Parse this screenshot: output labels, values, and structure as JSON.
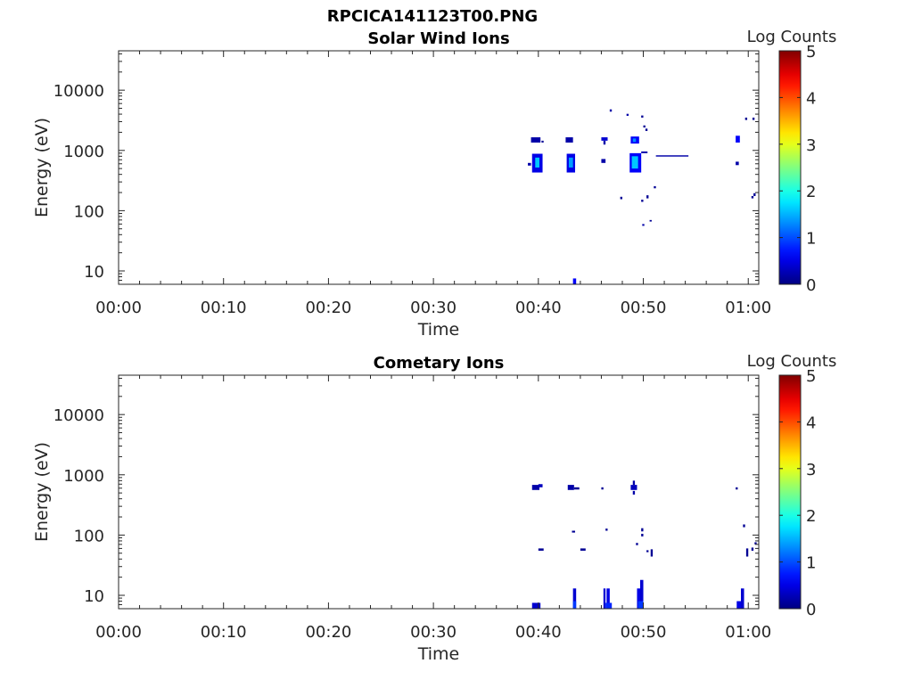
{
  "figure": {
    "title": "RPCICA141123T00.PNG"
  },
  "chart_data": [
    {
      "type": "heatmap",
      "title": "Solar Wind Ions",
      "xlabel": "Time",
      "ylabel": "Energy (eV)",
      "x_scale": "time",
      "y_scale": "log",
      "xlim": [
        "00:00",
        "01:01"
      ],
      "ylim": [
        6,
        45000
      ],
      "x_ticks": [
        "00:00",
        "00:10",
        "00:20",
        "00:30",
        "00:40",
        "00:50",
        "01:00"
      ],
      "y_ticks": [
        10,
        100,
        1000,
        10000
      ],
      "y_tick_labels": [
        "10",
        "100",
        "1000",
        "10000"
      ],
      "colorbar": {
        "label": "Log Counts",
        "min": 0,
        "max": 5,
        "ticks": [
          "0",
          "1",
          "2",
          "3",
          "4",
          "5"
        ]
      },
      "cells": [
        {
          "t": [
            39.3,
            40.2
          ],
          "e": [
            1350,
            1650
          ],
          "v": 0.2
        },
        {
          "t": [
            40.3,
            40.5
          ],
          "e": [
            1350,
            1450
          ],
          "v": 0.1
        },
        {
          "t": [
            39.4,
            40.4
          ],
          "e": [
            430,
            880
          ],
          "v": 0.5
        },
        {
          "t": [
            39.7,
            40.1
          ],
          "e": [
            520,
            760
          ],
          "v": 1.6
        },
        {
          "t": [
            39.0,
            39.3
          ],
          "e": [
            560,
            620
          ],
          "v": 0.2
        },
        {
          "t": [
            42.6,
            43.3
          ],
          "e": [
            1350,
            1650
          ],
          "v": 0.2
        },
        {
          "t": [
            42.7,
            43.5
          ],
          "e": [
            430,
            880
          ],
          "v": 0.5
        },
        {
          "t": [
            42.9,
            43.3
          ],
          "e": [
            520,
            760
          ],
          "v": 1.4
        },
        {
          "t": [
            43.3,
            43.6
          ],
          "e": [
            6,
            7.5
          ],
          "v": 0.6
        },
        {
          "t": [
            46.0,
            46.6
          ],
          "e": [
            1450,
            1650
          ],
          "v": 0.4
        },
        {
          "t": [
            46.2,
            46.4
          ],
          "e": [
            1250,
            1450
          ],
          "v": 0.2
        },
        {
          "t": [
            46.0,
            46.4
          ],
          "e": [
            620,
            720
          ],
          "v": 0.2
        },
        {
          "t": [
            48.8,
            49.6
          ],
          "e": [
            1300,
            1700
          ],
          "v": 0.6
        },
        {
          "t": [
            49.0,
            49.3
          ],
          "e": [
            1380,
            1580
          ],
          "v": 1.3
        },
        {
          "t": [
            48.7,
            49.8
          ],
          "e": [
            430,
            900
          ],
          "v": 0.6
        },
        {
          "t": [
            48.9,
            49.5
          ],
          "e": [
            500,
            800
          ],
          "v": 1.6
        },
        {
          "t": [
            49.8,
            50.4
          ],
          "e": [
            900,
            960
          ],
          "v": 0.2
        },
        {
          "t": [
            51.2,
            54.3
          ],
          "e": [
            790,
            830
          ],
          "v": 0.2
        },
        {
          "t": [
            58.8,
            59.2
          ],
          "e": [
            1350,
            1750
          ],
          "v": 0.6
        },
        {
          "t": [
            58.8,
            59.1
          ],
          "e": [
            570,
            650
          ],
          "v": 0.2
        },
        {
          "t": [
            46.8,
            47.0
          ],
          "e": [
            4400,
            4800
          ],
          "v": 0.2
        },
        {
          "t": [
            48.4,
            48.6
          ],
          "e": [
            3750,
            4050
          ],
          "v": 0.2
        },
        {
          "t": [
            49.8,
            50.0
          ],
          "e": [
            3500,
            3800
          ],
          "v": 0.1
        },
        {
          "t": [
            50.0,
            50.2
          ],
          "e": [
            2400,
            2600
          ],
          "v": 0.1
        },
        {
          "t": [
            50.2,
            50.4
          ],
          "e": [
            2100,
            2300
          ],
          "v": 0.1
        },
        {
          "t": [
            51.0,
            51.2
          ],
          "e": [
            235,
            255
          ],
          "v": 0.1
        },
        {
          "t": [
            47.8,
            48.0
          ],
          "e": [
            155,
            170
          ],
          "v": 0.1
        },
        {
          "t": [
            50.3,
            50.5
          ],
          "e": [
            160,
            180
          ],
          "v": 0.1
        },
        {
          "t": [
            49.8,
            50.0
          ],
          "e": [
            140,
            152
          ],
          "v": 0.1
        },
        {
          "t": [
            49.9,
            50.1
          ],
          "e": [
            56,
            60
          ],
          "v": 0.2
        },
        {
          "t": [
            50.6,
            50.8
          ],
          "e": [
            66,
            70
          ],
          "v": 0.1
        },
        {
          "t": [
            59.7,
            59.9
          ],
          "e": [
            3200,
            3500
          ],
          "v": 0.1
        },
        {
          "t": [
            60.4,
            60.6
          ],
          "e": [
            3200,
            3500
          ],
          "v": 0.1
        },
        {
          "t": [
            60.5,
            60.7
          ],
          "e": [
            175,
            195
          ],
          "v": 0.1
        },
        {
          "t": [
            60.3,
            60.5
          ],
          "e": [
            160,
            175
          ],
          "v": 0.1
        }
      ]
    },
    {
      "type": "heatmap",
      "title": "Cometary Ions",
      "xlabel": "Time",
      "ylabel": "Energy (eV)",
      "x_scale": "time",
      "y_scale": "log",
      "xlim": [
        "00:00",
        "01:01"
      ],
      "ylim": [
        6,
        45000
      ],
      "x_ticks": [
        "00:00",
        "00:10",
        "00:20",
        "00:30",
        "00:40",
        "00:50",
        "01:00"
      ],
      "y_ticks": [
        10,
        100,
        1000,
        10000
      ],
      "y_tick_labels": [
        "10",
        "100",
        "1000",
        "10000"
      ],
      "colorbar": {
        "label": "Log Counts",
        "min": 0,
        "max": 5,
        "ticks": [
          "0",
          "1",
          "2",
          "3",
          "4",
          "5"
        ]
      },
      "cells": [
        {
          "t": [
            39.4,
            40.1
          ],
          "e": [
            560,
            680
          ],
          "v": 0.2
        },
        {
          "t": [
            40.0,
            40.4
          ],
          "e": [
            620,
            700
          ],
          "v": 0.3
        },
        {
          "t": [
            42.8,
            43.4
          ],
          "e": [
            560,
            680
          ],
          "v": 0.2
        },
        {
          "t": [
            43.4,
            43.9
          ],
          "e": [
            570,
            620
          ],
          "v": 0.1
        },
        {
          "t": [
            46.0,
            46.2
          ],
          "e": [
            570,
            620
          ],
          "v": 0.1
        },
        {
          "t": [
            48.8,
            49.4
          ],
          "e": [
            560,
            680
          ],
          "v": 0.3
        },
        {
          "t": [
            49.0,
            49.2
          ],
          "e": [
            680,
            800
          ],
          "v": 0.2
        },
        {
          "t": [
            49.0,
            49.2
          ],
          "e": [
            470,
            540
          ],
          "v": 0.2
        },
        {
          "t": [
            58.8,
            59.0
          ],
          "e": [
            570,
            620
          ],
          "v": 0.1
        },
        {
          "t": [
            43.2,
            43.5
          ],
          "e": [
            110,
            118
          ],
          "v": 0.1
        },
        {
          "t": [
            46.4,
            46.6
          ],
          "e": [
            118,
            128
          ],
          "v": 0.1
        },
        {
          "t": [
            49.8,
            50.0
          ],
          "e": [
            115,
            130
          ],
          "v": 0.1
        },
        {
          "t": [
            49.8,
            50.0
          ],
          "e": [
            95,
            105
          ],
          "v": 0.1
        },
        {
          "t": [
            49.3,
            49.5
          ],
          "e": [
            68,
            74
          ],
          "v": 0.1
        },
        {
          "t": [
            40.0,
            40.5
          ],
          "e": [
            55,
            60
          ],
          "v": 0.1
        },
        {
          "t": [
            44.0,
            44.5
          ],
          "e": [
            55,
            60
          ],
          "v": 0.1
        },
        {
          "t": [
            50.3,
            50.5
          ],
          "e": [
            52,
            56
          ],
          "v": 0.1
        },
        {
          "t": [
            50.7,
            50.9
          ],
          "e": [
            44,
            58
          ],
          "v": 0.1
        },
        {
          "t": [
            59.5,
            59.7
          ],
          "e": [
            135,
            150
          ],
          "v": 0.1
        },
        {
          "t": [
            59.8,
            60.0
          ],
          "e": [
            44,
            60
          ],
          "v": 0.1
        },
        {
          "t": [
            60.3,
            60.5
          ],
          "e": [
            55,
            62
          ],
          "v": 0.1
        },
        {
          "t": [
            60.6,
            60.8
          ],
          "e": [
            70,
            76
          ],
          "v": 0.1
        },
        {
          "t": [
            39.4,
            40.2
          ],
          "e": [
            6,
            7.5
          ],
          "v": 0.4
        },
        {
          "t": [
            43.3,
            43.6
          ],
          "e": [
            6,
            13
          ],
          "v": 0.4
        },
        {
          "t": [
            43.3,
            43.6
          ],
          "e": [
            6,
            8
          ],
          "v": 0.9
        },
        {
          "t": [
            46.2,
            46.4
          ],
          "e": [
            6,
            13
          ],
          "v": 0.4
        },
        {
          "t": [
            46.5,
            46.8
          ],
          "e": [
            6,
            13
          ],
          "v": 0.5
        },
        {
          "t": [
            46.4,
            47.0
          ],
          "e": [
            6,
            7.5
          ],
          "v": 0.8
        },
        {
          "t": [
            49.4,
            49.7
          ],
          "e": [
            6,
            13
          ],
          "v": 0.5
        },
        {
          "t": [
            49.7,
            50.0
          ],
          "e": [
            6,
            18
          ],
          "v": 0.4
        },
        {
          "t": [
            49.5,
            50.0
          ],
          "e": [
            6,
            8
          ],
          "v": 0.9
        },
        {
          "t": [
            58.9,
            59.5
          ],
          "e": [
            6,
            8
          ],
          "v": 0.5
        },
        {
          "t": [
            59.3,
            59.6
          ],
          "e": [
            6,
            13
          ],
          "v": 0.4
        }
      ]
    }
  ]
}
